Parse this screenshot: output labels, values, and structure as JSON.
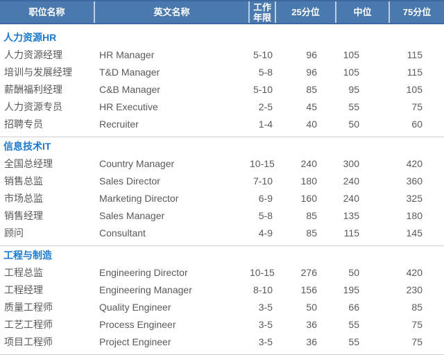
{
  "colors": {
    "header_bg": "#4a79ad",
    "header_border": "#3b69a0",
    "header_divider": "#bccfe4",
    "header_text": "#ffffff",
    "section_title": "#1b7ace",
    "body_text": "#58595b",
    "rule": "#cccccc"
  },
  "table": {
    "columns": [
      {
        "label": "职位名称"
      },
      {
        "label": "英文名称"
      },
      {
        "label": "工作年限"
      },
      {
        "label": "25分位"
      },
      {
        "label": "中位"
      },
      {
        "label": "75分位"
      }
    ],
    "sections": [
      {
        "title": "人力资源HR",
        "rows": [
          [
            "人力资源经理",
            "HR Manager",
            "5-10",
            "96",
            "105",
            "115"
          ],
          [
            "培训与发展经理",
            "T&D Manager",
            "5-8",
            "96",
            "105",
            "115"
          ],
          [
            "薪酬福利经理",
            "C&B Manager",
            "5-10",
            "85",
            "95",
            "105"
          ],
          [
            "人力资源专员",
            "HR Executive",
            "2-5",
            "45",
            "55",
            "75"
          ],
          [
            "招聘专员",
            "Recruiter",
            "1-4",
            "40",
            "50",
            "60"
          ]
        ]
      },
      {
        "title": "信息技术IT",
        "rows": [
          [
            "全国总经理",
            "Country Manager",
            "10-15",
            "240",
            "300",
            "420"
          ],
          [
            "销售总监",
            "Sales Director",
            "7-10",
            "180",
            "240",
            "360"
          ],
          [
            "市场总监",
            "Marketing Director",
            "6-9",
            "160",
            "240",
            "325"
          ],
          [
            "销售经理",
            "Sales Manager",
            "5-8",
            "85",
            "135",
            "180"
          ],
          [
            "顾问",
            "Consultant",
            "4-9",
            "85",
            "115",
            "145"
          ]
        ]
      },
      {
        "title": "工程与制造",
        "rows": [
          [
            "工程总监",
            "Engineering Director",
            "10-15",
            "276",
            "50",
            "420"
          ],
          [
            "工程经理",
            "Engineering Manager",
            "8-10",
            "156",
            "195",
            "230"
          ],
          [
            "质量工程师",
            "Quality Engineer",
            "3-5",
            "50",
            "66",
            "85"
          ],
          [
            "工艺工程师",
            "Process Engineer",
            "3-5",
            "36",
            "55",
            "75"
          ],
          [
            "项目工程师",
            "Project Engineer",
            "3-5",
            "36",
            "55",
            "75"
          ]
        ]
      }
    ]
  },
  "chart_data": {
    "type": "table",
    "title": "",
    "columns": [
      "职位名称",
      "英文名称",
      "工作年限",
      "25分位",
      "中位",
      "75分位"
    ],
    "groups": [
      {
        "group": "人力资源HR",
        "rows": [
          [
            "人力资源经理",
            "HR Manager",
            "5-10",
            96,
            105,
            115
          ],
          [
            "培训与发展经理",
            "T&D Manager",
            "5-8",
            96,
            105,
            115
          ],
          [
            "薪酬福利经理",
            "C&B Manager",
            "5-10",
            85,
            95,
            105
          ],
          [
            "人力资源专员",
            "HR Executive",
            "2-5",
            45,
            55,
            75
          ],
          [
            "招聘专员",
            "Recruiter",
            "1-4",
            40,
            50,
            60
          ]
        ]
      },
      {
        "group": "信息技术IT",
        "rows": [
          [
            "全国总经理",
            "Country Manager",
            "10-15",
            240,
            300,
            420
          ],
          [
            "销售总监",
            "Sales Director",
            "7-10",
            180,
            240,
            360
          ],
          [
            "市场总监",
            "Marketing Director",
            "6-9",
            160,
            240,
            325
          ],
          [
            "销售经理",
            "Sales Manager",
            "5-8",
            85,
            135,
            180
          ],
          [
            "顾问",
            "Consultant",
            "4-9",
            85,
            115,
            145
          ]
        ]
      },
      {
        "group": "工程与制造",
        "rows": [
          [
            "工程总监",
            "Engineering Director",
            "10-15",
            276,
            50,
            420
          ],
          [
            "工程经理",
            "Engineering Manager",
            "8-10",
            156,
            195,
            230
          ],
          [
            "质量工程师",
            "Quality Engineer",
            "3-5",
            50,
            66,
            85
          ],
          [
            "工艺工程师",
            "Process Engineer",
            "3-5",
            36,
            55,
            75
          ],
          [
            "项目工程师",
            "Project Engineer",
            "3-5",
            36,
            55,
            75
          ]
        ]
      }
    ]
  }
}
